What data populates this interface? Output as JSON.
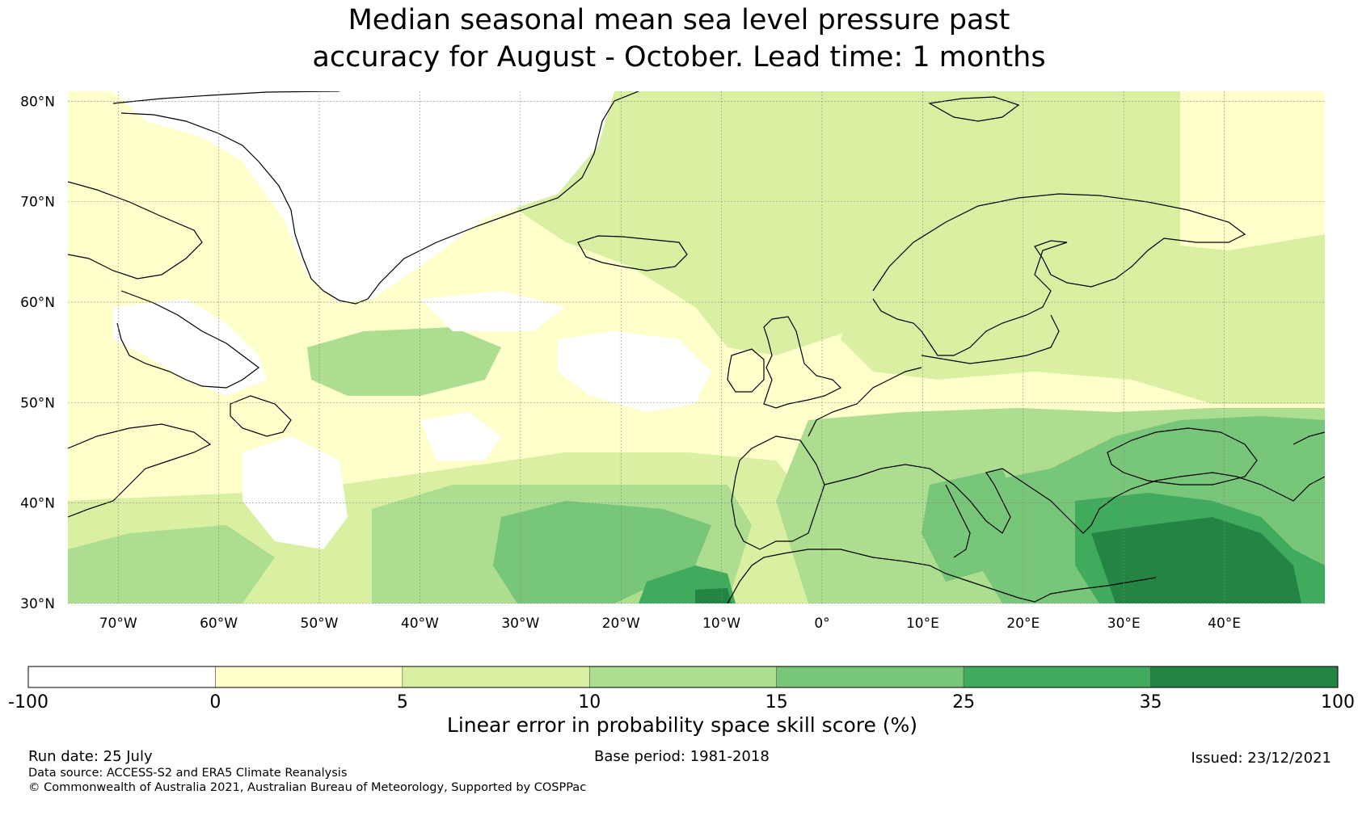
{
  "title": {
    "line1": "Median seasonal mean sea level pressure past",
    "line2": "accuracy for August - October. Lead time: 1 months"
  },
  "map": {
    "lat_range": [
      30,
      81
    ],
    "lon_range": [
      -75,
      50
    ],
    "lat_ticks": [
      "80°N",
      "70°N",
      "60°N",
      "50°N",
      "40°N",
      "30°N"
    ],
    "lon_ticks": [
      "70°W",
      "60°W",
      "50°W",
      "40°W",
      "30°W",
      "20°W",
      "10°W",
      "0°",
      "10°E",
      "20°E",
      "30°E",
      "40°E"
    ],
    "grid_lines": "dotted"
  },
  "colorbar": {
    "label": "Linear error in probability space skill score (%)",
    "ticks": [
      "-100",
      "0",
      "5",
      "10",
      "15",
      "25",
      "35",
      "100"
    ],
    "colors": [
      "#ffffff",
      "#ffffcc",
      "#d9f0a3",
      "#addd8e",
      "#78c679",
      "#41ab5d",
      "#238443"
    ]
  },
  "footer": {
    "run_date": "Run date: 25 July",
    "base_period": "Base period: 1981-2018",
    "issued": "Issued: 23/12/2021",
    "data_source": "Data source: ACCESS-S2 and ERA5 Climate Reanalysis",
    "copyright": "© Commonwealth of Australia 2021, Australian Bureau of Meteorology, Supported by COSPPac"
  }
}
